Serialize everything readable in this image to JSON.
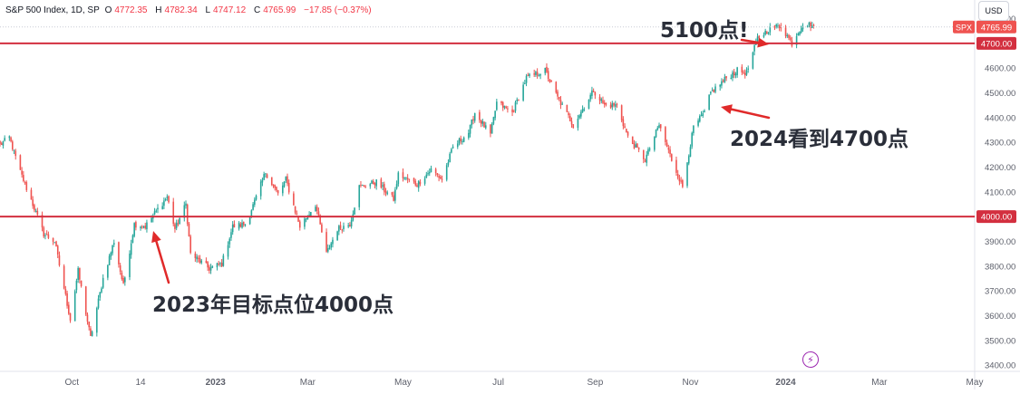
{
  "legend": {
    "symbol": "S&P 500 Index, 1D, SP",
    "open_label": "O",
    "open": "4772.35",
    "high_label": "H",
    "high": "4782.34",
    "low_label": "L",
    "low": "4747.12",
    "close_label": "C",
    "close": "4765.99",
    "change": "−17.85 (−0.37%)"
  },
  "currency": "USD",
  "annotations": {
    "top": "5100点!",
    "middle": "2024看到4700点",
    "bottom": "2023年目标点位4000点"
  },
  "colors": {
    "up": "#26a69a",
    "down": "#ef5350",
    "level_line": "#d32f3f",
    "arrow": "#e02a2a",
    "text": "#131722",
    "axis_text": "#5d606b"
  },
  "icons": {
    "bolt": "lightning-bolt-icon"
  },
  "chart_data": {
    "type": "candlestick",
    "title": "S&P 500 Index, 1D, SP",
    "ylabel": "USD",
    "ylim": [
      3375,
      4875
    ],
    "y_ticks": [
      "4800.00",
      "4700.00",
      "4600.00",
      "4500.00",
      "4400.00",
      "4300.00",
      "4200.00",
      "4100.00",
      "4000.00",
      "3900.00",
      "3800.00",
      "3700.00",
      "3600.00",
      "3500.00",
      "3400.00"
    ],
    "x_ticks": [
      {
        "label": "Oct",
        "date": "2022-10-01"
      },
      {
        "label": "14",
        "date": "2022-11-14"
      },
      {
        "label": "2023",
        "date": "2023-01-01"
      },
      {
        "label": "Mar",
        "date": "2023-03-01"
      },
      {
        "label": "May",
        "date": "2023-05-01"
      },
      {
        "label": "Jul",
        "date": "2023-07-01"
      },
      {
        "label": "Sep",
        "date": "2023-09-01"
      },
      {
        "label": "Nov",
        "date": "2023-11-01"
      },
      {
        "label": "2024",
        "date": "2024-01-01"
      },
      {
        "label": "Mar",
        "date": "2024-03-01"
      },
      {
        "label": "May",
        "date": "2024-05-01"
      }
    ],
    "x_range": [
      "2022-08-16",
      "2024-05-01"
    ],
    "horizontal_lines": [
      {
        "value": 4700,
        "label": "4700.00"
      },
      {
        "value": 4000,
        "label": "4000.00"
      }
    ],
    "last_price": {
      "symbol": "SPX",
      "value": 4765.99
    },
    "grid": false,
    "path": [
      [
        "2022-08-16",
        4290
      ],
      [
        "2022-08-22",
        4320
      ],
      [
        "2022-08-29",
        4180
      ],
      [
        "2022-09-06",
        4050
      ],
      [
        "2022-09-13",
        3930
      ],
      [
        "2022-09-20",
        3900
      ],
      [
        "2022-09-30",
        3585
      ],
      [
        "2022-10-05",
        3780
      ],
      [
        "2022-10-13",
        3510
      ],
      [
        "2022-10-21",
        3750
      ],
      [
        "2022-10-28",
        3900
      ],
      [
        "2022-11-03",
        3720
      ],
      [
        "2022-11-10",
        3970
      ],
      [
        "2022-11-17",
        3960
      ],
      [
        "2022-11-25",
        4030
      ],
      [
        "2022-12-01",
        4080
      ],
      [
        "2022-12-06",
        3950
      ],
      [
        "2022-12-13",
        4050
      ],
      [
        "2022-12-16",
        3850
      ],
      [
        "2022-12-28",
        3790
      ],
      [
        "2023-01-05",
        3810
      ],
      [
        "2023-01-12",
        3960
      ],
      [
        "2023-01-20",
        3970
      ],
      [
        "2023-01-26",
        4060
      ],
      [
        "2023-02-02",
        4180
      ],
      [
        "2023-02-10",
        4090
      ],
      [
        "2023-02-15",
        4150
      ],
      [
        "2023-02-24",
        3960
      ],
      [
        "2023-03-06",
        4050
      ],
      [
        "2023-03-13",
        3850
      ],
      [
        "2023-03-20",
        3950
      ],
      [
        "2023-03-28",
        3970
      ],
      [
        "2023-04-03",
        4120
      ],
      [
        "2023-04-14",
        4140
      ],
      [
        "2023-04-25",
        4070
      ],
      [
        "2023-04-28",
        4170
      ],
      [
        "2023-05-10",
        4130
      ],
      [
        "2023-05-19",
        4190
      ],
      [
        "2023-05-26",
        4150
      ],
      [
        "2023-06-02",
        4280
      ],
      [
        "2023-06-12",
        4340
      ],
      [
        "2023-06-16",
        4420
      ],
      [
        "2023-06-26",
        4330
      ],
      [
        "2023-06-30",
        4460
      ],
      [
        "2023-07-10",
        4420
      ],
      [
        "2023-07-19",
        4560
      ],
      [
        "2023-07-31",
        4590
      ],
      [
        "2023-08-08",
        4480
      ],
      [
        "2023-08-18",
        4370
      ],
      [
        "2023-08-31",
        4510
      ],
      [
        "2023-09-07",
        4450
      ],
      [
        "2023-09-15",
        4450
      ],
      [
        "2023-09-22",
        4320
      ],
      [
        "2023-10-03",
        4230
      ],
      [
        "2023-10-12",
        4370
      ],
      [
        "2023-10-20",
        4230
      ],
      [
        "2023-10-27",
        4120
      ],
      [
        "2023-11-03",
        4360
      ],
      [
        "2023-11-10",
        4420
      ],
      [
        "2023-11-14",
        4500
      ],
      [
        "2023-11-24",
        4560
      ],
      [
        "2023-12-01",
        4590
      ],
      [
        "2023-12-07",
        4580
      ],
      [
        "2023-12-14",
        4720
      ],
      [
        "2023-12-22",
        4760
      ],
      [
        "2023-12-29",
        4770
      ],
      [
        "2024-01-05",
        4700
      ],
      [
        "2024-01-12",
        4780
      ],
      [
        "2024-01-19",
        4770
      ]
    ]
  }
}
